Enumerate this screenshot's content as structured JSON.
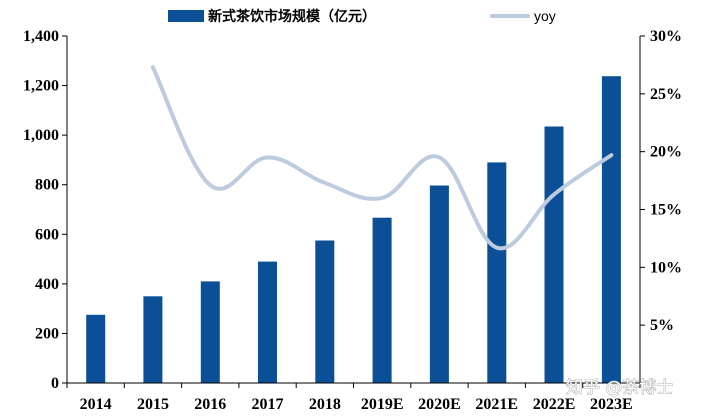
{
  "chart_data": {
    "type": "bar+line",
    "categories": [
      "2014",
      "2015",
      "2016",
      "2017",
      "2018",
      "2019E",
      "2020E",
      "2021E",
      "2022E",
      "2023E"
    ],
    "series": [
      {
        "name": "新式茶饮市场规模（亿元）",
        "type": "bar",
        "axis": "left",
        "color": "#0b4f96",
        "values": [
          275,
          350,
          410,
          490,
          575,
          667,
          797,
          890,
          1035,
          1238
        ]
      },
      {
        "name": "yoy",
        "type": "line",
        "axis": "right",
        "color": "#bccbde",
        "values": [
          null,
          0.273,
          0.171,
          0.195,
          0.173,
          0.16,
          0.195,
          0.117,
          0.163,
          0.197
        ]
      }
    ],
    "left_axis": {
      "min": 0,
      "max": 1400,
      "step": 200,
      "tick_labels": [
        "0",
        "200",
        "400",
        "600",
        "800",
        "1,000",
        "1,200",
        "1,400"
      ]
    },
    "right_axis": {
      "min": 0,
      "max": 0.3,
      "step": 0.05,
      "tick_labels": [
        "",
        "5%",
        "10%",
        "15%",
        "20%",
        "25%",
        "30%"
      ]
    },
    "legend": {
      "position": "top",
      "items": [
        "新式茶饮市场规模（亿元）",
        "yoy"
      ]
    }
  },
  "watermark": "知乎 @茶博士"
}
